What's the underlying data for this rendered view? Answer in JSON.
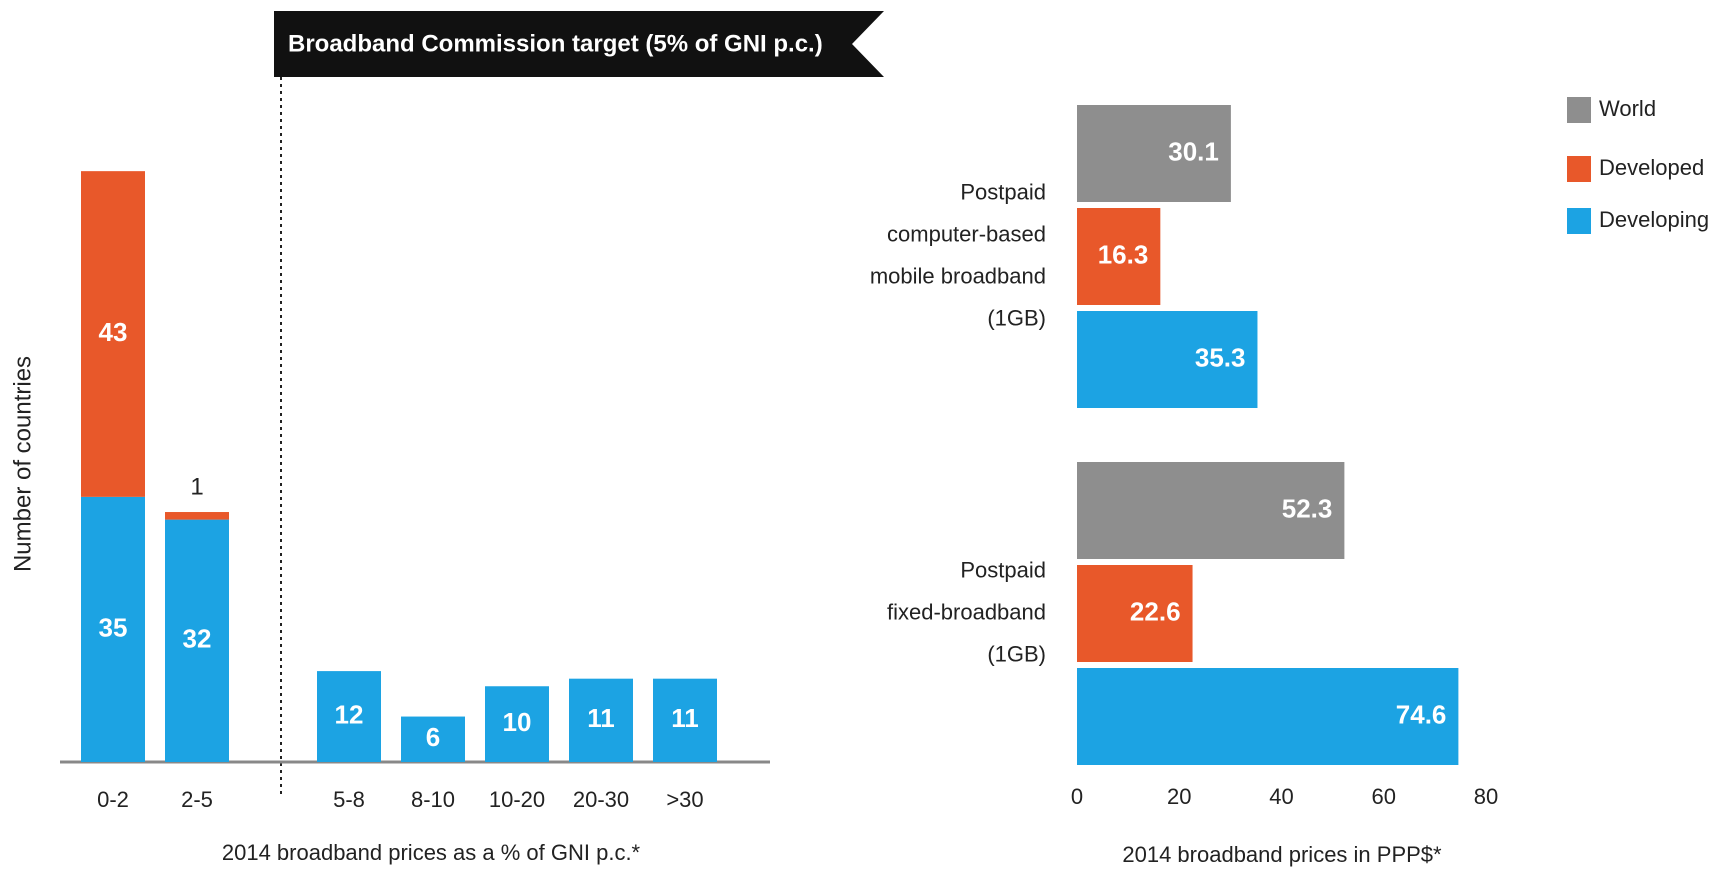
{
  "chart_data": [
    {
      "type": "bar",
      "stacked": true,
      "annotation": "Broadband Commission target (5% of GNI p.c.)",
      "x_label": "2014 broadband prices as a % of GNI p.c.*",
      "y_label": "Number of countries",
      "categories": [
        "0-2",
        "2-5",
        "5-8",
        "8-10",
        "10-20",
        "20-30",
        ">30"
      ],
      "series": [
        {
          "name": "Developing",
          "color": "#1ca3e3",
          "values": [
            35,
            32,
            12,
            6,
            10,
            11,
            11
          ]
        },
        {
          "name": "Developed",
          "color": "#e8582a",
          "values": [
            43,
            1,
            0,
            0,
            0,
            0,
            0
          ]
        }
      ],
      "ylim": [
        0,
        80
      ]
    },
    {
      "type": "hbar",
      "x_label": "2014 broadband prices in PPP$*",
      "categories": [
        "Postpaid\ncomputer-based\nmobile broadband\n(1GB)",
        "Postpaid\nfixed-broadband\n(1GB)"
      ],
      "series": [
        {
          "name": "World",
          "color": "#8e8e8e",
          "values": [
            30.1,
            52.3
          ]
        },
        {
          "name": "Developed",
          "color": "#e8582a",
          "values": [
            16.3,
            22.6
          ]
        },
        {
          "name": "Developing",
          "color": "#1ca3e3",
          "values": [
            35.3,
            74.6
          ]
        }
      ],
      "xlim": [
        0,
        80
      ],
      "xticks": [
        0,
        20,
        40,
        60,
        80
      ],
      "legend": "top-right"
    }
  ]
}
